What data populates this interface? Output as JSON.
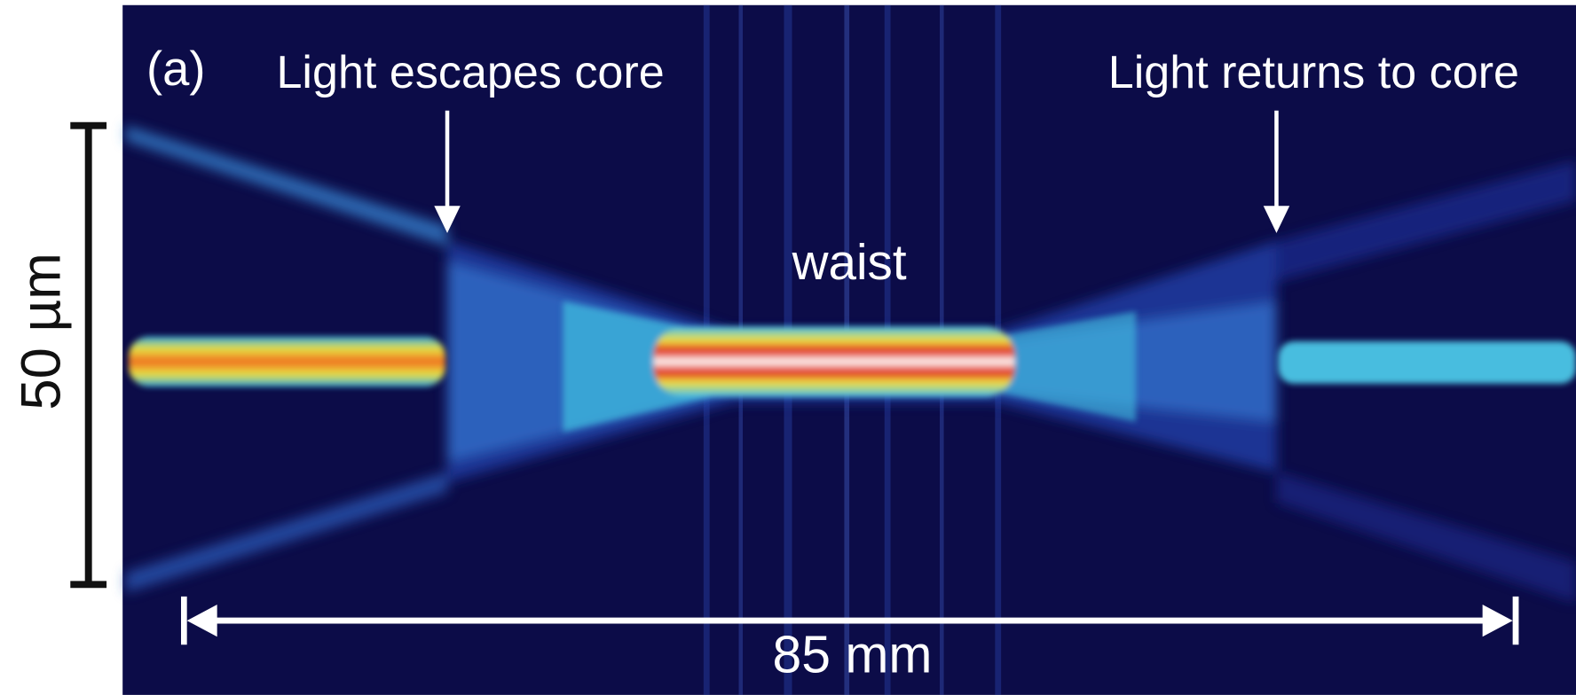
{
  "panel": {
    "label": "(a)"
  },
  "annotations": {
    "left": "Light escapes core",
    "right": "Light returns to core",
    "center": "waist"
  },
  "scale_bars": {
    "vertical": "50 µm",
    "horizontal": "85 mm"
  }
}
